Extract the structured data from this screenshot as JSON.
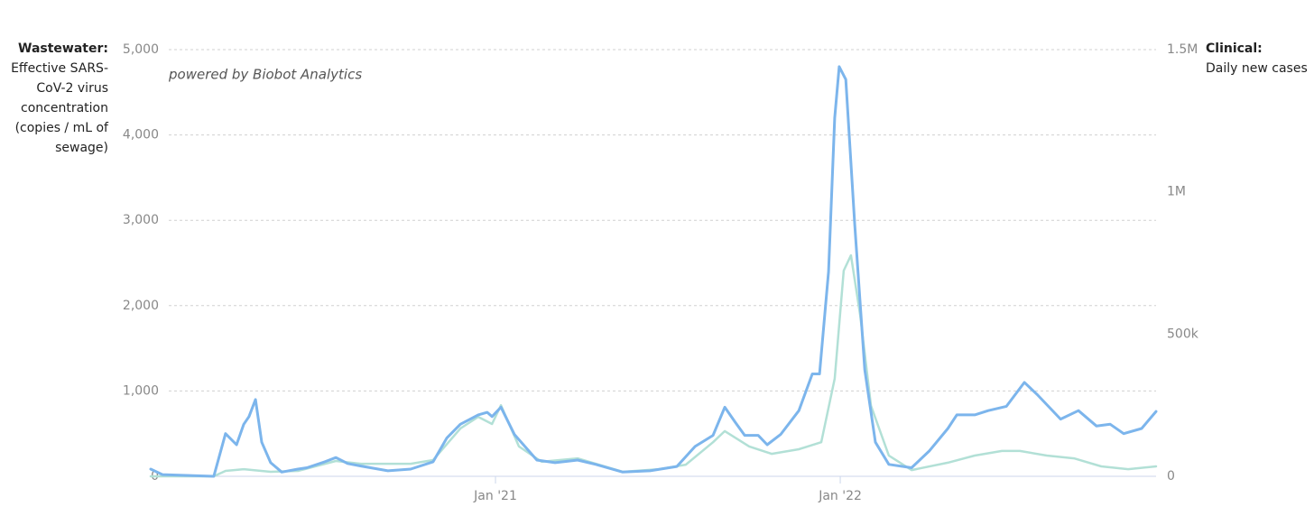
{
  "chart_data": {
    "type": "line",
    "annotation": "powered by Biobot Analytics",
    "xlim": [
      2020.0,
      2022.916
    ],
    "xticks": [
      {
        "value": 2021,
        "label": "Jan '21"
      },
      {
        "value": 2022,
        "label": "Jan '22"
      }
    ],
    "ylim": [
      0,
      5000
    ],
    "yticks": [
      0,
      {
        "value": 1000,
        "label": "1,000"
      },
      {
        "value": 2000,
        "label": "2,000"
      },
      {
        "value": 3000,
        "label": "3,000"
      },
      {
        "value": 4000,
        "label": "4,000"
      },
      {
        "value": 5000,
        "label": "5,000"
      }
    ],
    "y2lim": [
      0,
      1500000
    ],
    "y2ticks": [
      0,
      {
        "value": 500000,
        "label": "500k"
      },
      {
        "value": 1000000,
        "label": "1M"
      },
      {
        "value": 1500000,
        "label": "1.5M"
      }
    ],
    "grid": true,
    "series": [
      {
        "name": "Wastewater:",
        "description": "Effective SARS-CoV-2 virus concentration (copies / mL of sewage)",
        "color": "#7cb5ec",
        "axis": "y",
        "x": [
          2020.0,
          2020.034,
          2020.183,
          2020.217,
          2020.249,
          2020.27,
          2020.285,
          2020.304,
          2020.322,
          2020.348,
          2020.38,
          2020.427,
          2020.453,
          2020.505,
          2020.537,
          2020.571,
          2020.61,
          2020.688,
          2020.754,
          2020.819,
          2020.859,
          2020.898,
          2020.95,
          2020.976,
          2020.99,
          2021.016,
          2021.055,
          2021.12,
          2021.173,
          2021.238,
          2021.291,
          2021.369,
          2021.448,
          2021.526,
          2021.579,
          2021.631,
          2021.665,
          2021.696,
          2021.723,
          2021.762,
          2021.788,
          2021.827,
          2021.88,
          2021.919,
          2021.94,
          2021.966,
          2021.984,
          2021.997,
          2022.016,
          2022.042,
          2022.071,
          2022.102,
          2022.141,
          2022.207,
          2022.259,
          2022.312,
          2022.338,
          2022.39,
          2022.429,
          2022.482,
          2022.534,
          2022.573,
          2022.639,
          2022.691,
          2022.743,
          2022.783,
          2022.822,
          2022.874,
          2022.916
        ],
        "values": [
          85,
          20,
          0,
          500,
          370,
          610,
          700,
          900,
          400,
          160,
          50,
          85,
          100,
          170,
          220,
          150,
          120,
          65,
          85,
          170,
          450,
          610,
          720,
          750,
          700,
          810,
          490,
          190,
          160,
          190,
          140,
          50,
          65,
          115,
          350,
          480,
          810,
          630,
          480,
          480,
          370,
          490,
          770,
          1200,
          1200,
          2400,
          4200,
          4800,
          4650,
          2950,
          1250,
          400,
          140,
          100,
          300,
          560,
          720,
          720,
          770,
          820,
          1100,
          950,
          670,
          770,
          590,
          610,
          500,
          560,
          760
        ]
      },
      {
        "name": "Clinical:",
        "description": "Daily new cases",
        "color": "#b2e0d6",
        "axis": "y2",
        "x": [
          2020.0,
          2020.183,
          2020.217,
          2020.27,
          2020.348,
          2020.427,
          2020.537,
          2020.61,
          2020.754,
          2020.819,
          2020.898,
          2020.95,
          2020.99,
          2021.016,
          2021.068,
          2021.134,
          2021.238,
          2021.369,
          2021.474,
          2021.552,
          2021.631,
          2021.665,
          2021.736,
          2021.801,
          2021.88,
          2021.945,
          2021.984,
          2022.01,
          2022.031,
          2022.058,
          2022.089,
          2022.141,
          2022.207,
          2022.312,
          2022.39,
          2022.469,
          2022.521,
          2022.599,
          2022.678,
          2022.757,
          2022.835,
          2022.916
        ],
        "values": [
          0,
          0,
          19000,
          25000,
          16000,
          19000,
          54000,
          44000,
          44000,
          57000,
          168000,
          209000,
          184000,
          250000,
          105000,
          51000,
          63000,
          16000,
          25000,
          41000,
          120000,
          159000,
          105000,
          79000,
          95000,
          120000,
          343000,
          723000,
          777000,
          565000,
          248000,
          73000,
          22000,
          48000,
          73000,
          89000,
          89000,
          73000,
          63000,
          35000,
          25000,
          35000
        ]
      }
    ]
  }
}
